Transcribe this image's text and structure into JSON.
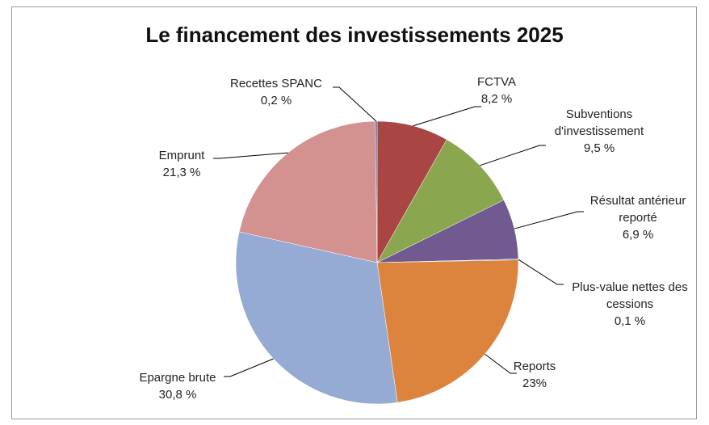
{
  "chart_data": {
    "type": "pie",
    "title": "Le financement des investissements 2025",
    "categories": [
      "FCTVA",
      "Subventions d'investissement",
      "Résultat antérieur reporté",
      "Plus-value nettes des cessions",
      "Reports",
      "Epargne brute",
      "Emprunt",
      "Recettes  SPANC"
    ],
    "values": [
      8.2,
      9.5,
      6.9,
      0.1,
      23,
      30.8,
      21.3,
      0.2
    ],
    "value_labels": [
      "8,2 %",
      "9,5 %",
      "6,9 %",
      "0,1 %",
      "23%",
      "30,8 %",
      "21,3 %",
      "0,2 %"
    ],
    "colors": [
      "#a94543",
      "#8aa64e",
      "#715a90",
      "#4f81bd",
      "#dc843d",
      "#95abd3",
      "#d39290",
      "#4e6fa6"
    ]
  }
}
